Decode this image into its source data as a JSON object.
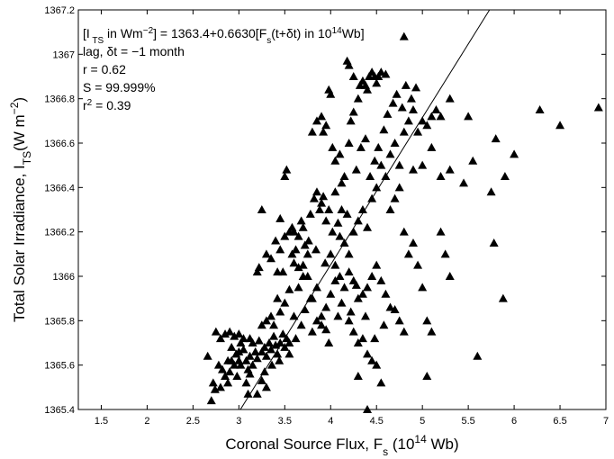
{
  "chart_data": {
    "type": "scatter",
    "marker": "triangle",
    "marker_color": "#000000",
    "xlabel": {
      "main": "Coronal Source Flux, F",
      "sub": "s",
      "post": " (10",
      "sup": "14",
      "end": " Wb)"
    },
    "ylabel": {
      "main": "Total Solar Irradiance, I",
      "sub": "TS",
      "post": "(W m",
      "sup": "−2",
      "end": ")"
    },
    "xlim": [
      1.25,
      7.0
    ],
    "ylim": [
      1365.4,
      1367.2
    ],
    "xticks": [
      1.5,
      2,
      2.5,
      3,
      3.5,
      4,
      4.5,
      5,
      5.5,
      6,
      6.5,
      7
    ],
    "xtick_labels": [
      "1.5",
      "2",
      "2.5",
      "3",
      "3.5",
      "4",
      "4.5",
      "5",
      "5.5",
      "6",
      "6.5",
      "7"
    ],
    "yticks": [
      1365.4,
      1365.6,
      1365.8,
      1366,
      1366.2,
      1366.4,
      1366.6,
      1366.8,
      1367,
      1367.2
    ],
    "ytick_labels": [
      "1365.4",
      "1365.6",
      "1365.8",
      "1366",
      "1366.2",
      "1366.4",
      "1366.6",
      "1366.8",
      "1367",
      "1367.2"
    ],
    "grid": false,
    "fit_line": {
      "intercept": 1363.4,
      "slope": 0.663
    },
    "annotations": [
      {
        "parts": [
          [
            "[I",
            ""
          ],
          [
            " TS",
            "sub"
          ],
          [
            " in Wm",
            ""
          ],
          [
            "−2",
            "sup"
          ],
          [
            "] = 1363.4+0.6630[F",
            ""
          ],
          [
            "s",
            "sub"
          ],
          [
            "(t+δt) in 10",
            ""
          ],
          [
            "14",
            "sup"
          ],
          [
            "Wb]",
            ""
          ]
        ]
      },
      {
        "parts": [
          [
            "lag, δt = −1 month",
            ""
          ]
        ]
      },
      {
        "parts": [
          [
            "r = 0.62",
            ""
          ]
        ]
      },
      {
        "parts": [
          [
            "S = 99.999%",
            ""
          ]
        ]
      },
      {
        "parts": [
          [
            "r",
            ""
          ],
          [
            "2",
            "sup"
          ],
          [
            " = 0.39",
            ""
          ]
        ]
      }
    ],
    "points": [
      [
        2.66,
        1365.64
      ],
      [
        2.7,
        1365.44
      ],
      [
        2.72,
        1365.52
      ],
      [
        2.74,
        1365.49
      ],
      [
        2.8,
        1365.5
      ],
      [
        2.82,
        1365.58
      ],
      [
        2.85,
        1365.55
      ],
      [
        2.88,
        1365.62
      ],
      [
        2.9,
        1365.57
      ],
      [
        2.92,
        1365.62
      ],
      [
        2.95,
        1365.6
      ],
      [
        2.97,
        1365.65
      ],
      [
        3.0,
        1365.62
      ],
      [
        3.02,
        1365.6
      ],
      [
        3.05,
        1365.67
      ],
      [
        3.08,
        1365.62
      ],
      [
        3.1,
        1365.58
      ],
      [
        3.12,
        1365.72
      ],
      [
        3.15,
        1365.6
      ],
      [
        3.18,
        1365.66
      ],
      [
        3.2,
        1365.63
      ],
      [
        3.22,
        1365.71
      ],
      [
        3.25,
        1365.66
      ],
      [
        3.28,
        1365.68
      ],
      [
        3.3,
        1365.64
      ],
      [
        3.33,
        1365.7
      ],
      [
        3.35,
        1365.67
      ],
      [
        3.38,
        1365.73
      ],
      [
        3.4,
        1365.69
      ],
      [
        3.42,
        1365.65
      ],
      [
        3.45,
        1365.7
      ],
      [
        3.48,
        1365.74
      ],
      [
        3.5,
        1365.68
      ],
      [
        3.52,
        1365.72
      ],
      [
        3.55,
        1365.7
      ],
      [
        2.75,
        1365.75
      ],
      [
        2.8,
        1365.72
      ],
      [
        2.85,
        1365.74
      ],
      [
        2.9,
        1365.75
      ],
      [
        2.95,
        1365.73
      ],
      [
        3.0,
        1365.74
      ],
      [
        3.05,
        1365.72
      ],
      [
        2.98,
        1365.55
      ],
      [
        3.08,
        1365.52
      ],
      [
        3.1,
        1365.47
      ],
      [
        3.2,
        1365.47
      ],
      [
        3.25,
        1365.53
      ],
      [
        3.12,
        1365.56
      ],
      [
        3.3,
        1365.5
      ],
      [
        3.0,
        1365.66
      ],
      [
        3.15,
        1365.7
      ],
      [
        3.25,
        1365.78
      ],
      [
        3.3,
        1365.8
      ],
      [
        3.35,
        1365.82
      ],
      [
        3.38,
        1365.78
      ],
      [
        3.42,
        1365.9
      ],
      [
        3.45,
        1365.84
      ],
      [
        3.5,
        1365.88
      ],
      [
        3.55,
        1365.94
      ],
      [
        3.2,
        1366.02
      ],
      [
        3.22,
        1366.04
      ],
      [
        3.3,
        1366.1
      ],
      [
        3.35,
        1366.08
      ],
      [
        3.4,
        1366.16
      ],
      [
        3.42,
        1366.02
      ],
      [
        3.45,
        1366.12
      ],
      [
        3.5,
        1366.18
      ],
      [
        3.55,
        1366.2
      ],
      [
        3.6,
        1366.06
      ],
      [
        3.62,
        1366.12
      ],
      [
        3.65,
        1366.04
      ],
      [
        3.7,
        1366.22
      ],
      [
        3.72,
        1366.14
      ],
      [
        3.75,
        1366.1
      ],
      [
        3.25,
        1366.3
      ],
      [
        3.45,
        1366.26
      ],
      [
        3.5,
        1366.45
      ],
      [
        3.52,
        1366.48
      ],
      [
        3.58,
        1366.22
      ],
      [
        3.6,
        1366.2
      ],
      [
        3.65,
        1366.18
      ],
      [
        3.7,
        1366.05
      ],
      [
        3.75,
        1366.0
      ],
      [
        3.8,
        1365.9
      ],
      [
        3.85,
        1365.95
      ],
      [
        3.9,
        1365.82
      ],
      [
        3.95,
        1365.86
      ],
      [
        4.0,
        1365.92
      ],
      [
        4.05,
        1365.98
      ],
      [
        3.8,
        1365.75
      ],
      [
        3.85,
        1365.8
      ],
      [
        3.9,
        1365.78
      ],
      [
        3.95,
        1365.76
      ],
      [
        3.78,
        1366.28
      ],
      [
        3.82,
        1366.35
      ],
      [
        3.85,
        1366.38
      ],
      [
        3.88,
        1366.3
      ],
      [
        3.9,
        1366.33
      ],
      [
        3.92,
        1366.36
      ],
      [
        3.95,
        1366.25
      ],
      [
        3.98,
        1366.3
      ],
      [
        3.8,
        1366.65
      ],
      [
        3.85,
        1366.7
      ],
      [
        3.9,
        1366.72
      ],
      [
        3.92,
        1366.65
      ],
      [
        3.95,
        1366.68
      ],
      [
        3.98,
        1366.84
      ],
      [
        4.0,
        1366.82
      ],
      [
        4.02,
        1366.58
      ],
      [
        4.05,
        1366.52
      ],
      [
        4.1,
        1366.55
      ],
      [
        4.12,
        1366.42
      ],
      [
        4.15,
        1366.45
      ],
      [
        4.2,
        1366.6
      ],
      [
        4.22,
        1366.7
      ],
      [
        4.25,
        1366.74
      ],
      [
        4.18,
        1366.97
      ],
      [
        4.2,
        1366.95
      ],
      [
        4.25,
        1366.9
      ],
      [
        4.3,
        1366.8
      ],
      [
        4.32,
        1366.86
      ],
      [
        4.35,
        1366.88
      ],
      [
        4.38,
        1366.86
      ],
      [
        4.4,
        1366.84
      ],
      [
        4.42,
        1366.9
      ],
      [
        4.45,
        1366.92
      ],
      [
        4.48,
        1366.9
      ],
      [
        4.5,
        1366.87
      ],
      [
        4.52,
        1366.9
      ],
      [
        4.55,
        1366.92
      ],
      [
        4.6,
        1366.91
      ],
      [
        4.8,
        1367.08
      ],
      [
        4.1,
        1366.18
      ],
      [
        4.15,
        1366.15
      ],
      [
        4.2,
        1366.1
      ],
      [
        4.25,
        1366.2
      ],
      [
        4.3,
        1366.25
      ],
      [
        4.35,
        1366.3
      ],
      [
        4.4,
        1366.22
      ],
      [
        4.0,
        1366.1
      ],
      [
        4.05,
        1366.05
      ],
      [
        4.1,
        1366.0
      ],
      [
        4.15,
        1365.95
      ],
      [
        4.2,
        1366.02
      ],
      [
        4.25,
        1365.98
      ],
      [
        4.3,
        1365.9
      ],
      [
        4.35,
        1365.92
      ],
      [
        4.4,
        1365.95
      ],
      [
        4.45,
        1366.0
      ],
      [
        4.5,
        1366.05
      ],
      [
        4.55,
        1365.98
      ],
      [
        4.6,
        1365.92
      ],
      [
        4.65,
        1365.86
      ],
      [
        4.2,
        1365.8
      ],
      [
        4.25,
        1365.75
      ],
      [
        4.3,
        1365.7
      ],
      [
        4.35,
        1365.72
      ],
      [
        4.4,
        1365.65
      ],
      [
        4.45,
        1365.62
      ],
      [
        4.5,
        1365.6
      ],
      [
        4.55,
        1365.52
      ],
      [
        4.4,
        1365.4
      ],
      [
        4.3,
        1365.55
      ],
      [
        4.45,
        1366.35
      ],
      [
        4.5,
        1366.4
      ],
      [
        4.55,
        1366.5
      ],
      [
        4.6,
        1366.45
      ],
      [
        4.65,
        1366.55
      ],
      [
        4.7,
        1366.6
      ],
      [
        4.75,
        1366.5
      ],
      [
        4.8,
        1366.65
      ],
      [
        4.85,
        1366.7
      ],
      [
        4.9,
        1366.75
      ],
      [
        4.95,
        1366.65
      ],
      [
        5.0,
        1366.7
      ],
      [
        5.05,
        1366.68
      ],
      [
        5.1,
        1366.72
      ],
      [
        5.15,
        1366.75
      ],
      [
        5.2,
        1366.72
      ],
      [
        5.3,
        1366.8
      ],
      [
        5.5,
        1366.72
      ],
      [
        5.9,
        1366.45
      ],
      [
        6.0,
        1366.55
      ],
      [
        6.28,
        1366.75
      ],
      [
        6.5,
        1366.68
      ],
      [
        6.92,
        1366.76
      ],
      [
        5.8,
        1366.62
      ],
      [
        5.75,
        1366.38
      ],
      [
        5.78,
        1366.15
      ],
      [
        5.88,
        1365.9
      ],
      [
        5.6,
        1365.64
      ],
      [
        4.8,
        1366.2
      ],
      [
        4.85,
        1366.1
      ],
      [
        4.9,
        1366.15
      ],
      [
        4.95,
        1366.05
      ],
      [
        5.0,
        1365.95
      ],
      [
        5.05,
        1365.8
      ],
      [
        4.7,
        1365.85
      ],
      [
        4.75,
        1365.8
      ],
      [
        4.8,
        1365.75
      ],
      [
        5.1,
        1365.75
      ],
      [
        5.2,
        1366.2
      ],
      [
        5.25,
        1366.1
      ],
      [
        5.3,
        1366.0
      ],
      [
        5.05,
        1365.55
      ],
      [
        4.9,
        1366.48
      ],
      [
        5.0,
        1366.5
      ],
      [
        5.1,
        1366.58
      ],
      [
        5.2,
        1366.45
      ],
      [
        5.3,
        1366.48
      ],
      [
        5.45,
        1366.42
      ],
      [
        5.55,
        1366.52
      ],
      [
        4.65,
        1366.3
      ],
      [
        4.7,
        1366.35
      ],
      [
        4.75,
        1366.4
      ],
      [
        3.6,
        1365.82
      ],
      [
        3.65,
        1365.95
      ],
      [
        3.7,
        1366.0
      ],
      [
        3.55,
        1365.65
      ],
      [
        3.62,
        1365.72
      ],
      [
        3.68,
        1365.78
      ],
      [
        3.72,
        1365.85
      ],
      [
        3.78,
        1365.9
      ],
      [
        4.05,
        1366.38
      ],
      [
        4.12,
        1366.3
      ],
      [
        4.18,
        1366.28
      ],
      [
        4.28,
        1366.48
      ],
      [
        4.33,
        1366.58
      ],
      [
        4.38,
        1366.62
      ],
      [
        4.43,
        1366.45
      ],
      [
        4.48,
        1366.52
      ],
      [
        4.52,
        1366.58
      ],
      [
        4.58,
        1366.66
      ],
      [
        4.62,
        1366.73
      ],
      [
        4.68,
        1366.78
      ],
      [
        4.72,
        1366.82
      ],
      [
        4.78,
        1366.76
      ],
      [
        4.82,
        1366.86
      ],
      [
        4.88,
        1366.8
      ],
      [
        4.93,
        1366.85
      ],
      [
        3.28,
        1365.57
      ],
      [
        3.36,
        1365.6
      ],
      [
        3.44,
        1365.62
      ],
      [
        3.02,
        1365.7
      ],
      [
        3.12,
        1365.64
      ],
      [
        2.92,
        1365.68
      ],
      [
        2.88,
        1365.52
      ],
      [
        2.78,
        1365.6
      ],
      [
        3.48,
        1366.02
      ],
      [
        3.58,
        1366.1
      ],
      [
        3.68,
        1366.25
      ],
      [
        3.76,
        1366.16
      ],
      [
        3.84,
        1366.12
      ],
      [
        3.94,
        1366.06
      ],
      [
        4.02,
        1366.2
      ],
      [
        4.08,
        1366.24
      ],
      [
        3.98,
        1365.7
      ],
      [
        4.08,
        1365.82
      ],
      [
        4.12,
        1365.88
      ],
      [
        4.22,
        1365.84
      ],
      [
        4.28,
        1365.96
      ],
      [
        4.38,
        1365.82
      ],
      [
        4.48,
        1365.72
      ],
      [
        4.58,
        1365.78
      ]
    ]
  }
}
